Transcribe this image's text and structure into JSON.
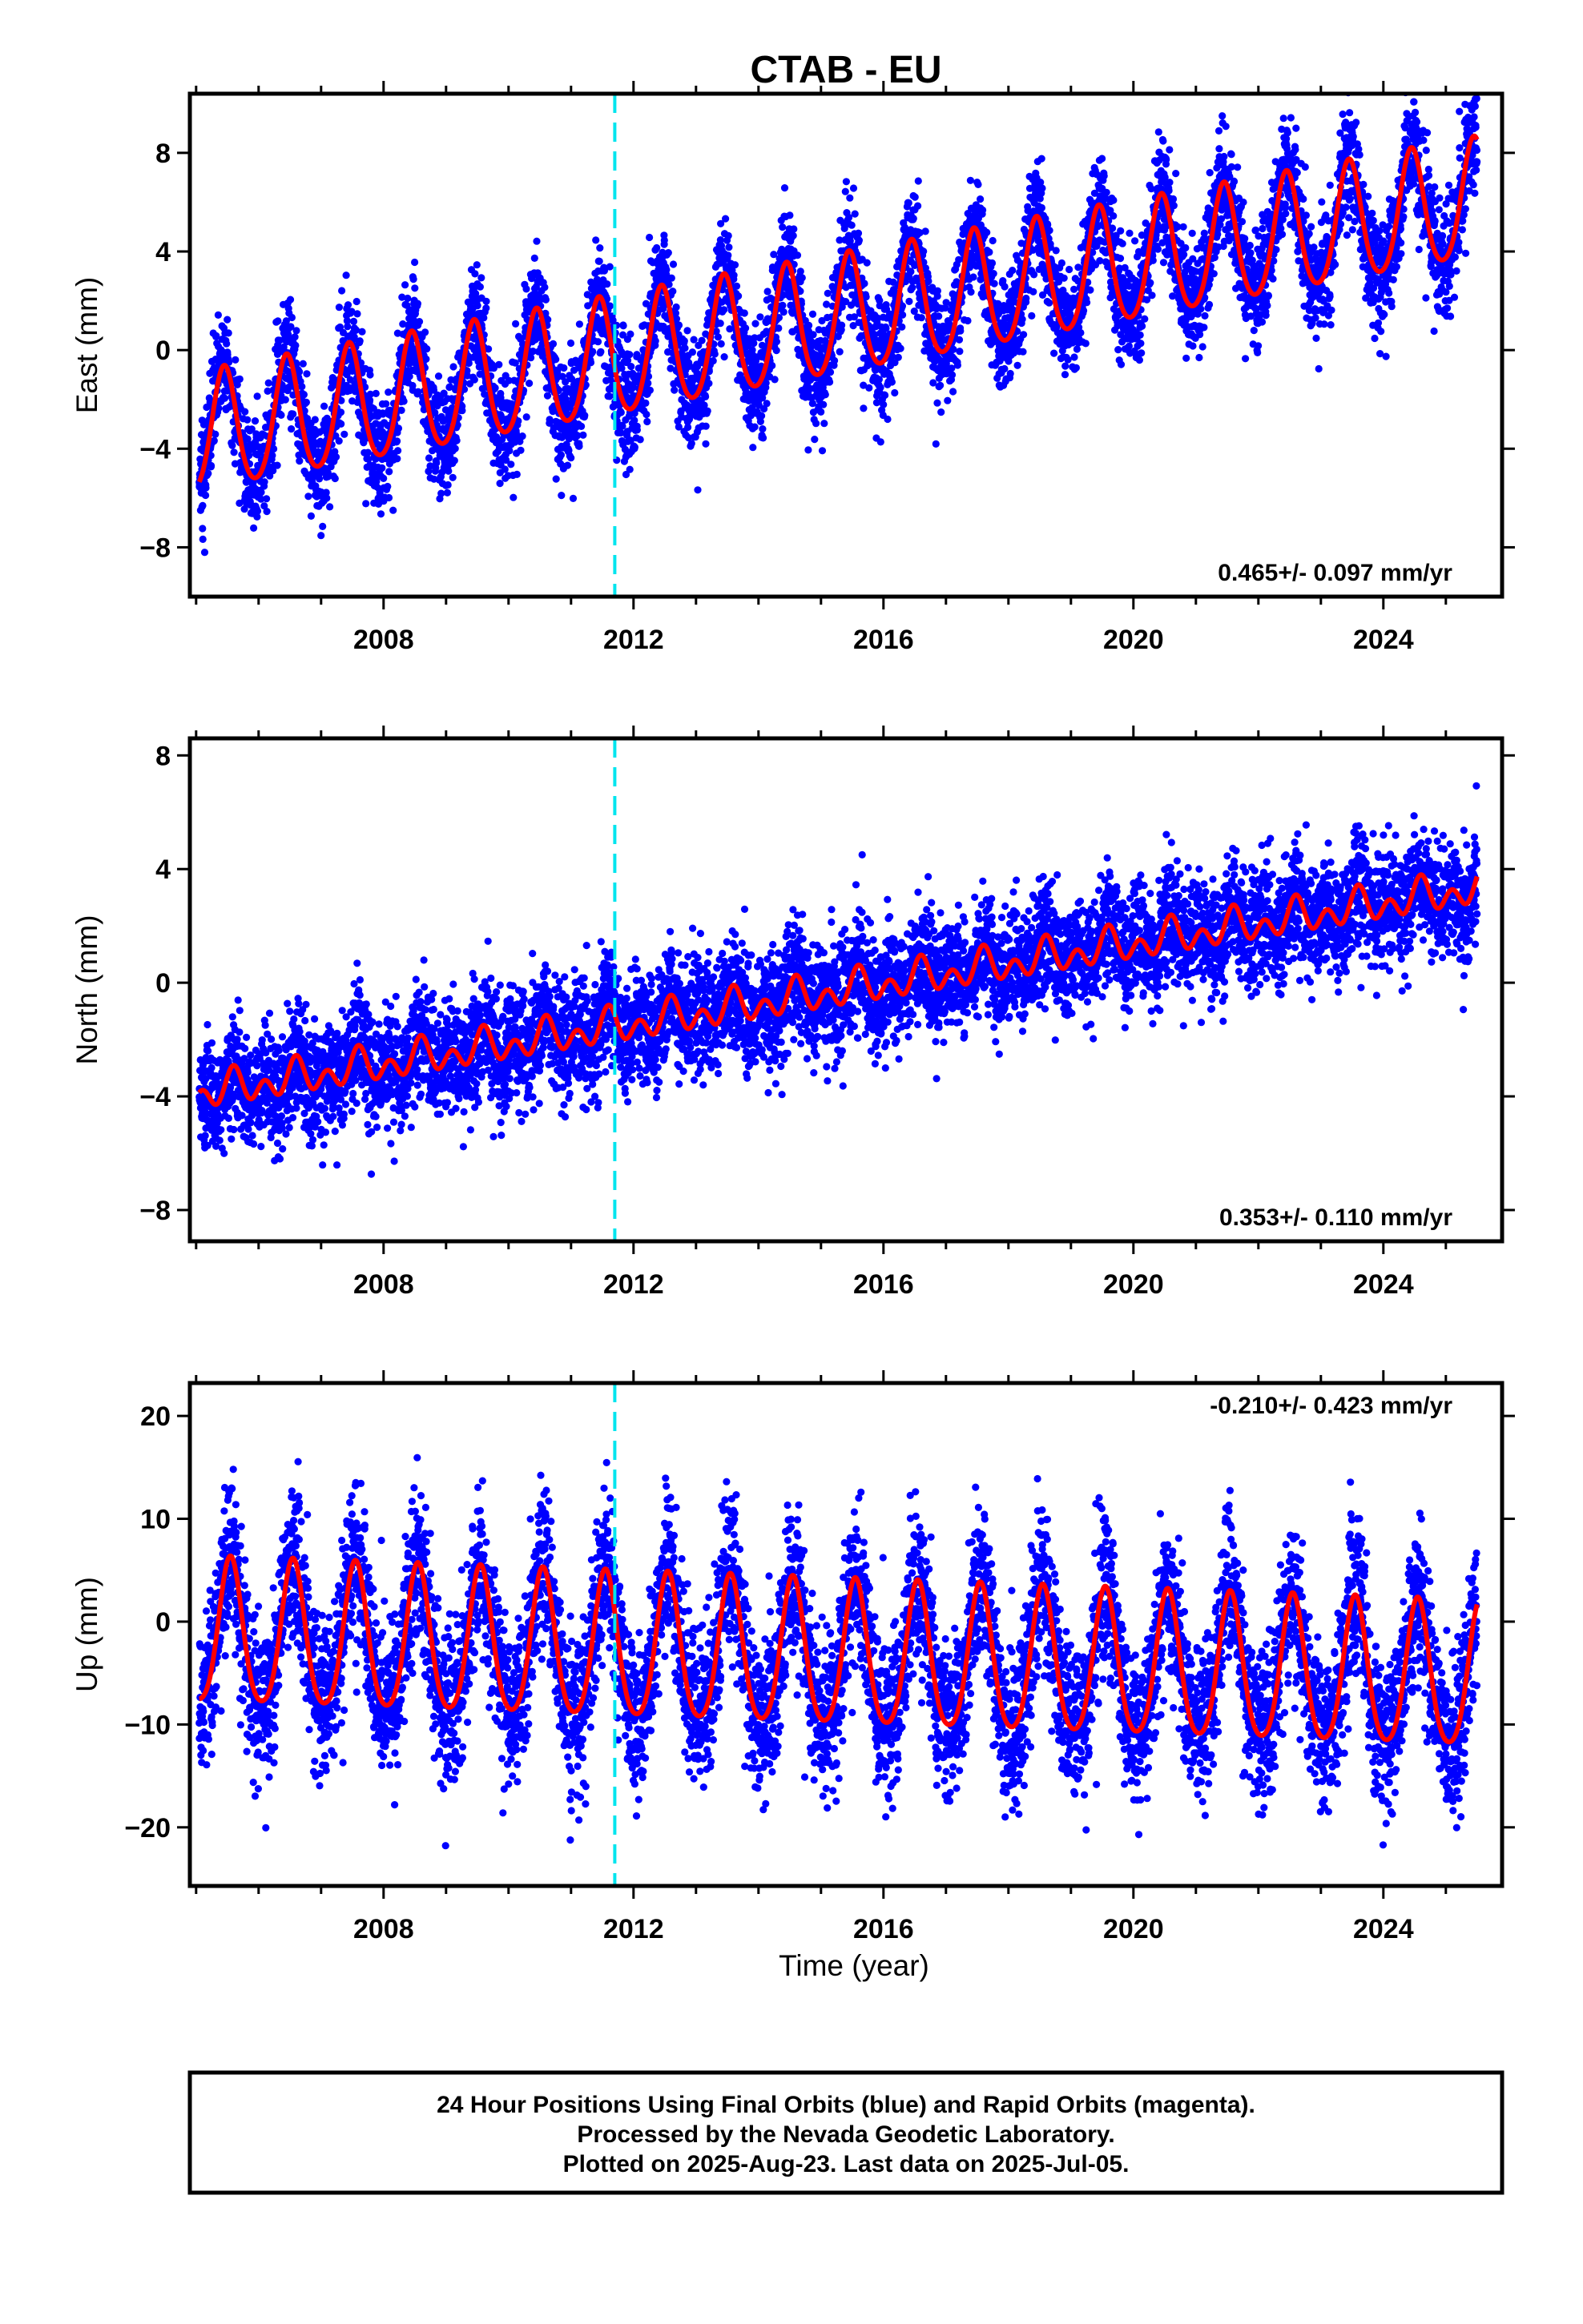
{
  "chart_data": [
    {
      "type": "scatter",
      "panel": "east",
      "title": "CTAB - EU",
      "ylabel": "East (mm)",
      "xlabel": "",
      "xlim": [
        2004.9,
        2025.9
      ],
      "ylim": [
        -10,
        10.4
      ],
      "x_ticks": [
        2008,
        2012,
        2016,
        2020,
        2024
      ],
      "y_ticks": [
        8,
        4,
        0,
        -4,
        -8
      ],
      "rate_label": "0.465+/- 0.097 mm/yr",
      "rate_position": "bottom-right",
      "grid": false,
      "discontinuity_year": 2011.7,
      "series": [
        {
          "color": "#0000ff",
          "model": {
            "start": 2005.05,
            "end": 2025.5,
            "offset_at_start": -3.5,
            "trend_mm_per_yr": 0.465,
            "annual_amplitude": 2.4,
            "annual_phase_year": 2005.45,
            "semiannual_amplitude": 0.3,
            "scatter_sd": 1.1
          }
        },
        {
          "color": "#ff0000",
          "line_width": 6
        }
      ]
    },
    {
      "type": "scatter",
      "panel": "north",
      "title": "",
      "ylabel": "North (mm)",
      "xlabel": "",
      "xlim": [
        2004.9,
        2025.9
      ],
      "ylim": [
        -9.1,
        8.6
      ],
      "x_ticks": [
        2008,
        2012,
        2016,
        2020,
        2024
      ],
      "y_ticks": [
        8,
        4,
        0,
        -4,
        -8
      ],
      "rate_label": "0.353+/- 0.110 mm/yr",
      "rate_position": "bottom-right",
      "grid": false,
      "discontinuity_year": 2011.7,
      "series": [
        {
          "color": "#0000ff",
          "model": {
            "start": 2005.05,
            "end": 2025.5,
            "offset_at_start": -3.9,
            "trend_mm_per_yr": 0.353,
            "annual_amplitude": 0.35,
            "annual_phase_year": 2005.6,
            "semiannual_amplitude": 0.45,
            "scatter_sd": 1.0
          }
        },
        {
          "color": "#ff0000",
          "line_width": 6
        }
      ]
    },
    {
      "type": "scatter",
      "panel": "up",
      "title": "",
      "ylabel": "Up (mm)",
      "xlabel": "Time (year)",
      "xlim": [
        2004.9,
        2025.9
      ],
      "ylim": [
        -25.7,
        23.2
      ],
      "x_ticks": [
        2008,
        2012,
        2016,
        2020,
        2024
      ],
      "y_ticks": [
        20,
        10,
        0,
        -10,
        -20
      ],
      "rate_label": "-0.210+/- 0.423 mm/yr",
      "rate_position": "top-right",
      "grid": false,
      "discontinuity_year": 2011.7,
      "series": [
        {
          "color": "#0000ff",
          "model": {
            "start": 2005.05,
            "end": 2025.5,
            "offset_at_start": -1.5,
            "trend_mm_per_yr": -0.21,
            "annual_amplitude": 7.0,
            "annual_phase_year": 2005.55,
            "semiannual_amplitude": 1.0,
            "scatter_sd": 3.8
          }
        },
        {
          "color": "#ff0000",
          "line_width": 6
        }
      ]
    }
  ],
  "caption": {
    "line1": "24 Hour Positions Using Final Orbits (blue) and Rapid Orbits (magenta).",
    "line2": "Processed by the Nevada Geodetic Laboratory.",
    "line3": "Plotted on 2025-Aug-23. Last data on 2025-Jul-05."
  }
}
